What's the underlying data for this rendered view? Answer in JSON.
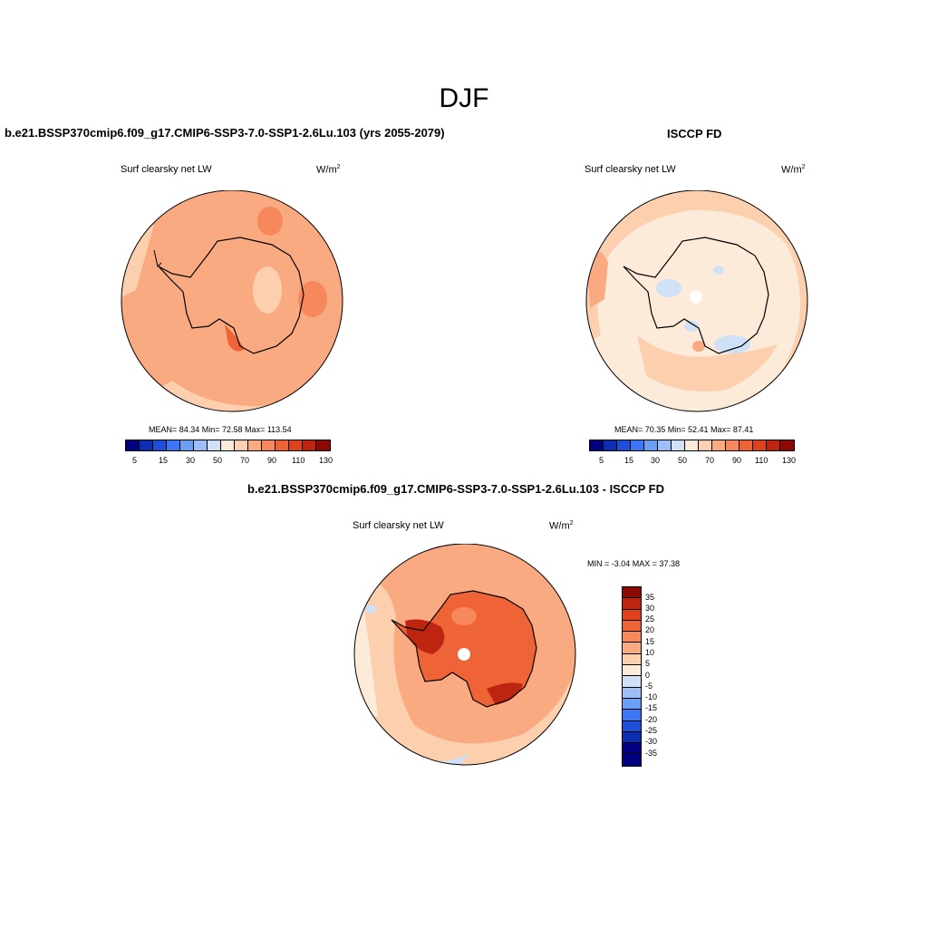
{
  "season": "DJF",
  "colors": {
    "map_palette": [
      "#000080",
      "#0b2fb0",
      "#1f4fd9",
      "#3c78f5",
      "#6b9ef5",
      "#9dbff5",
      "#cfe0f7",
      "#fdebd9",
      "#fccfae",
      "#f9aa81",
      "#f6885c",
      "#ef6436",
      "#e0401c",
      "#bd2511",
      "#8c0a02"
    ],
    "diff_palette": [
      "#000080",
      "#0b2fb0",
      "#1f4fd9",
      "#3c78f5",
      "#6b9ef5",
      "#9dbff5",
      "#cfe0f7",
      "#fdebd9",
      "#fccfae",
      "#f9aa81",
      "#f6885c",
      "#ef6436",
      "#e0401c",
      "#bd2511",
      "#8c0a02"
    ],
    "antarctica_line": "#000000"
  },
  "panels": {
    "model": {
      "header": "b.e21.BSSP370cmip6.f09_g17.CMIP6-SSP3-7.0-SSP1-2.6Lu.103 (yrs 2055-2079)",
      "variable": "Surf clearsky net LW",
      "units_base": "W/m",
      "units_exp": "2",
      "stats": "MEAN=  84.34  Min=  72.58  Max= 113.54",
      "colorbar_labels": [
        "5",
        "15",
        "30",
        "50",
        "70",
        "90",
        "110",
        "130"
      ]
    },
    "obs": {
      "header": "ISCCP FD",
      "variable": "Surf clearsky net LW",
      "units_base": "W/m",
      "units_exp": "2",
      "stats": "MEAN=  70.35  Min=  52.41  Max=  87.41",
      "colorbar_labels": [
        "5",
        "15",
        "30",
        "50",
        "70",
        "90",
        "110",
        "130"
      ]
    },
    "diff": {
      "header": "b.e21.BSSP370cmip6.f09_g17.CMIP6-SSP3-7.0-SSP1-2.6Lu.103 - ISCCP FD",
      "variable": "Surf clearsky net LW",
      "units_base": "W/m",
      "units_exp": "2",
      "stats": "MIN =  -3.04 MAX =  37.38",
      "colorbar_labels": [
        "35",
        "30",
        "25",
        "20",
        "15",
        "10",
        "5",
        "0",
        "-5",
        "-10",
        "-15",
        "-20",
        "-25",
        "-30",
        "-35"
      ]
    }
  }
}
